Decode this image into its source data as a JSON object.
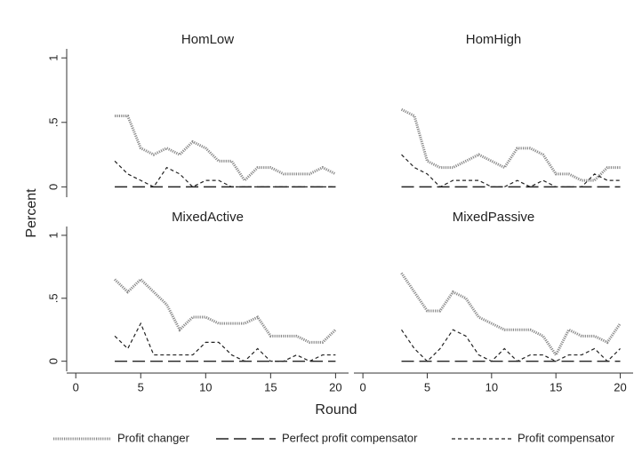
{
  "ylabel": "Percent",
  "xlabel": "Round",
  "chart_data": [
    {
      "type": "line",
      "title": "HomLow",
      "x": [
        3,
        4,
        5,
        6,
        7,
        8,
        9,
        10,
        11,
        12,
        13,
        14,
        15,
        16,
        17,
        18,
        19,
        20
      ],
      "xlim": [
        -0.7,
        21
      ],
      "ylim": [
        -0.08,
        1.07
      ],
      "yticks": [
        0,
        {
          "value": 0.5,
          "label": ".5"
        },
        1
      ],
      "series": [
        {
          "name": "Profit changer",
          "color": "#8a8a8a",
          "dash": "dotted",
          "values": [
            0.55,
            0.55,
            0.3,
            0.25,
            0.3,
            0.25,
            0.35,
            0.3,
            0.2,
            0.2,
            0.05,
            0.15,
            0.15,
            0.1,
            0.1,
            0.1,
            0.15,
            0.1
          ]
        },
        {
          "name": "Perfect profit compensator",
          "color": "#222222",
          "dash": "longdash",
          "values": [
            0,
            0,
            0,
            0,
            0,
            0,
            0,
            0,
            0,
            0,
            0,
            0,
            0,
            0,
            0,
            0,
            0,
            0
          ]
        },
        {
          "name": "Profit compensator",
          "color": "#222222",
          "dash": "shortdash",
          "values": [
            0.2,
            0.1,
            0.05,
            0,
            0.15,
            0.1,
            0,
            0.05,
            0.05,
            0,
            0,
            0,
            0,
            0,
            0,
            0,
            0,
            0
          ]
        }
      ]
    },
    {
      "type": "line",
      "title": "HomHigh",
      "x": [
        3,
        4,
        5,
        6,
        7,
        8,
        9,
        10,
        11,
        12,
        13,
        14,
        15,
        16,
        17,
        18,
        19,
        20
      ],
      "xlim": [
        -0.7,
        21
      ],
      "ylim": [
        -0.08,
        1.07
      ],
      "series": [
        {
          "color": "#8a8a8a",
          "dash": "dotted",
          "values": [
            0.6,
            0.55,
            0.2,
            0.15,
            0.15,
            0.2,
            0.25,
            0.2,
            0.15,
            0.3,
            0.3,
            0.25,
            0.1,
            0.1,
            0.05,
            0.05,
            0.15,
            0.15
          ]
        },
        {
          "color": "#222222",
          "dash": "longdash",
          "values": [
            0,
            0,
            0,
            0,
            0,
            0,
            0,
            0,
            0,
            0,
            0,
            0,
            0,
            0,
            0,
            0,
            0,
            0
          ]
        },
        {
          "color": "#222222",
          "dash": "shortdash",
          "values": [
            0.25,
            0.15,
            0.1,
            0,
            0.05,
            0.05,
            0.05,
            0,
            0,
            0.05,
            0,
            0.05,
            0,
            0,
            0,
            0.1,
            0.05,
            0.05
          ]
        }
      ]
    },
    {
      "type": "line",
      "title": "MixedActive",
      "x": [
        3,
        4,
        5,
        6,
        7,
        8,
        9,
        10,
        11,
        12,
        13,
        14,
        15,
        16,
        17,
        18,
        19,
        20
      ],
      "xlim": [
        -0.7,
        21
      ],
      "ylim": [
        -0.08,
        1.07
      ],
      "xticks": [
        0,
        5,
        10,
        15,
        20
      ],
      "yticks": [
        0,
        {
          "value": 0.5,
          "label": ".5"
        },
        1
      ],
      "series": [
        {
          "color": "#8a8a8a",
          "dash": "dotted",
          "values": [
            0.65,
            0.55,
            0.65,
            0.55,
            0.45,
            0.25,
            0.35,
            0.35,
            0.3,
            0.3,
            0.3,
            0.35,
            0.2,
            0.2,
            0.2,
            0.15,
            0.15,
            0.25
          ]
        },
        {
          "color": "#222222",
          "dash": "longdash",
          "values": [
            0,
            0,
            0,
            0,
            0,
            0,
            0,
            0,
            0,
            0,
            0,
            0,
            0,
            0,
            0,
            0,
            0,
            0
          ]
        },
        {
          "color": "#222222",
          "dash": "shortdash",
          "values": [
            0.2,
            0.1,
            0.3,
            0.05,
            0.05,
            0.05,
            0.05,
            0.15,
            0.15,
            0.05,
            0,
            0.1,
            0,
            0,
            0.05,
            0,
            0.05,
            0.05
          ]
        }
      ]
    },
    {
      "type": "line",
      "title": "MixedPassive",
      "x": [
        3,
        4,
        5,
        6,
        7,
        8,
        9,
        10,
        11,
        12,
        13,
        14,
        15,
        16,
        17,
        18,
        19,
        20
      ],
      "xlim": [
        -0.7,
        21
      ],
      "ylim": [
        -0.08,
        1.07
      ],
      "xticks": [
        0,
        5,
        10,
        15,
        20
      ],
      "series": [
        {
          "color": "#8a8a8a",
          "dash": "dotted",
          "values": [
            0.7,
            0.55,
            0.4,
            0.4,
            0.55,
            0.5,
            0.35,
            0.3,
            0.25,
            0.25,
            0.25,
            0.2,
            0.05,
            0.25,
            0.2,
            0.2,
            0.15,
            0.3
          ]
        },
        {
          "color": "#222222",
          "dash": "longdash",
          "values": [
            0,
            0,
            0,
            0,
            0,
            0,
            0,
            0,
            0,
            0,
            0,
            0,
            0,
            0,
            0,
            0,
            0,
            0
          ]
        },
        {
          "color": "#222222",
          "dash": "shortdash",
          "values": [
            0.25,
            0.1,
            0,
            0.1,
            0.25,
            0.2,
            0.05,
            0,
            0.1,
            0,
            0.05,
            0.05,
            0,
            0.05,
            0.05,
            0.1,
            0,
            0.1
          ]
        }
      ]
    }
  ]
}
